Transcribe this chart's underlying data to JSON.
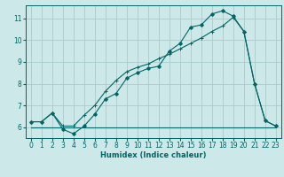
{
  "bg_color": "#cce8e8",
  "grid_color": "#aacccc",
  "line_color": "#006666",
  "xlim": [
    -0.5,
    23.5
  ],
  "ylim": [
    5.5,
    11.6
  ],
  "xlabel": "Humidex (Indice chaleur)",
  "xticks": [
    0,
    1,
    2,
    3,
    4,
    5,
    6,
    7,
    8,
    9,
    10,
    11,
    12,
    13,
    14,
    15,
    16,
    17,
    18,
    19,
    20,
    21,
    22,
    23
  ],
  "yticks": [
    6,
    7,
    8,
    9,
    10,
    11
  ],
  "line1_x": [
    0,
    1,
    2,
    3,
    4,
    5,
    6,
    7,
    8,
    9,
    10,
    11,
    12,
    13,
    14,
    15,
    16,
    17,
    18,
    19,
    20,
    21,
    22,
    23
  ],
  "line1_y": [
    6.0,
    6.0,
    6.0,
    6.0,
    6.0,
    6.0,
    6.0,
    6.0,
    6.0,
    6.0,
    6.0,
    6.0,
    6.0,
    6.0,
    6.0,
    6.0,
    6.0,
    6.0,
    6.0,
    6.0,
    6.0,
    6.0,
    6.0,
    6.0
  ],
  "line2_x": [
    0,
    1,
    2,
    3,
    4,
    5,
    6,
    7,
    8,
    9,
    10,
    11,
    12,
    13,
    14,
    15,
    16,
    17,
    18,
    19,
    20,
    21,
    22,
    23
  ],
  "line2_y": [
    6.25,
    6.25,
    6.65,
    5.9,
    5.7,
    6.05,
    6.6,
    7.3,
    7.55,
    8.25,
    8.5,
    8.7,
    8.8,
    9.5,
    9.85,
    10.6,
    10.7,
    11.2,
    11.35,
    11.1,
    10.4,
    8.0,
    6.3,
    6.05
  ],
  "line3_x": [
    0,
    1,
    2,
    3,
    4,
    5,
    6,
    7,
    8,
    9,
    10,
    11,
    12,
    13,
    14,
    15,
    16,
    17,
    18,
    19,
    20,
    21,
    22,
    23
  ],
  "line3_y": [
    6.25,
    6.25,
    6.65,
    6.05,
    6.05,
    6.55,
    7.0,
    7.65,
    8.15,
    8.55,
    8.75,
    8.9,
    9.15,
    9.35,
    9.6,
    9.85,
    10.1,
    10.4,
    10.65,
    11.05,
    10.4,
    8.0,
    6.3,
    6.05
  ]
}
